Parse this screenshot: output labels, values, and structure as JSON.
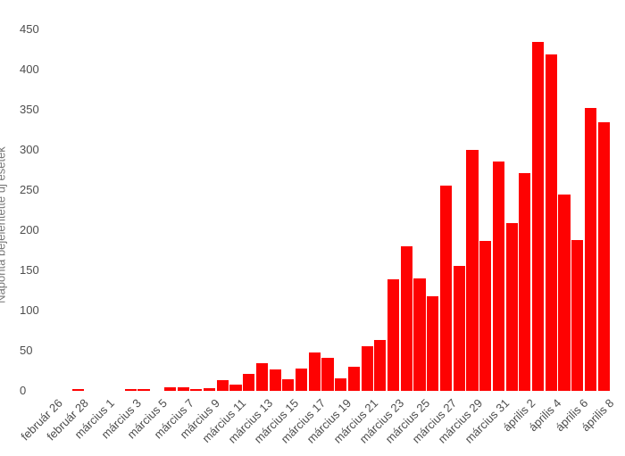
{
  "chart_data": {
    "type": "bar",
    "title": "",
    "ylabel": "Naponta bejelentette új esetek",
    "xlabel": "",
    "ylim": [
      0,
      450
    ],
    "yticks": [
      0,
      50,
      100,
      150,
      200,
      250,
      300,
      350,
      400,
      450
    ],
    "grid": false,
    "legend": "none",
    "bar_color": "#fe0202",
    "axis_label_color": "#4d4d4d",
    "axis_title_color": "#757575",
    "background": "#ffffff",
    "categories": [
      "február 26",
      "február 27",
      "február 28",
      "február 29",
      "március 1",
      "március 2",
      "március 3",
      "március 4",
      "március 5",
      "március 6",
      "március 7",
      "március 8",
      "március 9",
      "március 10",
      "március 11",
      "március 12",
      "március 13",
      "március 14",
      "március 15",
      "március 16",
      "március 17",
      "március 18",
      "március 19",
      "március 20",
      "március 21",
      "március 22",
      "március 23",
      "március 24",
      "március 25",
      "március 26",
      "március 27",
      "március 28",
      "március 29",
      "március 30",
      "március 31",
      "április 1",
      "április 2",
      "április 3",
      "április 4",
      "április 5",
      "április 6",
      "április 7",
      "április 8"
    ],
    "values": [
      0,
      0,
      2,
      0,
      0,
      0,
      2,
      2,
      0,
      4,
      5,
      2,
      3,
      13,
      8,
      21,
      34,
      27,
      15,
      28,
      48,
      41,
      16,
      30,
      56,
      63,
      139,
      180,
      140,
      118,
      256,
      156,
      300,
      187,
      286,
      209,
      271,
      435,
      419,
      244,
      188,
      352,
      335
    ],
    "x_tick_labels": [
      "február 26",
      "február 28",
      "március 1",
      "március 3",
      "március 5",
      "március 7",
      "március 9",
      "március 11",
      "március 13",
      "március 15",
      "március 17",
      "március 19",
      "március 21",
      "március 23",
      "március 25",
      "március 27",
      "március 29",
      "március 31",
      "április 2",
      "április 4",
      "április 6",
      "április 8"
    ],
    "x_tick_every": 2
  }
}
